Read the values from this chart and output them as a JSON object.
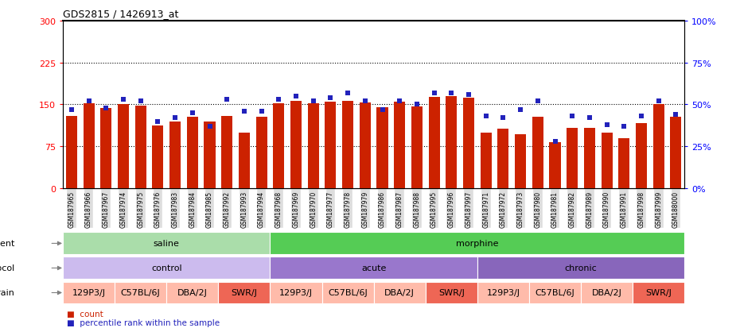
{
  "title": "GDS2815 / 1426913_at",
  "gsm_labels": [
    "GSM187965",
    "GSM187966",
    "GSM187967",
    "GSM187974",
    "GSM187975",
    "GSM187976",
    "GSM187983",
    "GSM187984",
    "GSM187985",
    "GSM187992",
    "GSM187993",
    "GSM187994",
    "GSM187968",
    "GSM187969",
    "GSM187970",
    "GSM187977",
    "GSM187978",
    "GSM187979",
    "GSM187986",
    "GSM187987",
    "GSM187988",
    "GSM187995",
    "GSM187996",
    "GSM187997",
    "GSM187971",
    "GSM187972",
    "GSM187973",
    "GSM187980",
    "GSM187981",
    "GSM187982",
    "GSM187989",
    "GSM187990",
    "GSM187991",
    "GSM187998",
    "GSM187999",
    "GSM188000"
  ],
  "bar_values": [
    130,
    152,
    143,
    150,
    148,
    112,
    120,
    128,
    120,
    130,
    100,
    128,
    152,
    157,
    152,
    155,
    157,
    153,
    145,
    155,
    147,
    163,
    165,
    162,
    100,
    107,
    97,
    128,
    83,
    108,
    108,
    100,
    90,
    117,
    150,
    128
  ],
  "dot_values": [
    47,
    52,
    48,
    53,
    52,
    40,
    42,
    45,
    37,
    53,
    46,
    46,
    53,
    55,
    52,
    54,
    57,
    52,
    47,
    52,
    50,
    57,
    57,
    56,
    43,
    42,
    47,
    52,
    28,
    43,
    42,
    38,
    37,
    43,
    52,
    44
  ],
  "bar_color": "#cc2200",
  "dot_color": "#2222bb",
  "ylim_left": [
    0,
    300
  ],
  "ylim_right": [
    0,
    100
  ],
  "yticks_left": [
    0,
    75,
    150,
    225,
    300
  ],
  "yticks_right": [
    0,
    25,
    50,
    75,
    100
  ],
  "hlines": [
    75,
    150,
    225
  ],
  "agent_groups": [
    {
      "label": "saline",
      "start": 0,
      "end": 12,
      "color": "#aaddaa"
    },
    {
      "label": "morphine",
      "start": 12,
      "end": 36,
      "color": "#55cc55"
    }
  ],
  "protocol_groups": [
    {
      "label": "control",
      "start": 0,
      "end": 12,
      "color": "#ccbbee"
    },
    {
      "label": "acute",
      "start": 12,
      "end": 24,
      "color": "#9977cc"
    },
    {
      "label": "chronic",
      "start": 24,
      "end": 36,
      "color": "#8866bb"
    }
  ],
  "strain_groups": [
    {
      "label": "129P3/J",
      "start": 0,
      "end": 3,
      "color": "#ffbbaa"
    },
    {
      "label": "C57BL/6J",
      "start": 3,
      "end": 6,
      "color": "#ffbbaa"
    },
    {
      "label": "DBA/2J",
      "start": 6,
      "end": 9,
      "color": "#ffbbaa"
    },
    {
      "label": "SWR/J",
      "start": 9,
      "end": 12,
      "color": "#ee6655"
    },
    {
      "label": "129P3/J",
      "start": 12,
      "end": 15,
      "color": "#ffbbaa"
    },
    {
      "label": "C57BL/6J",
      "start": 15,
      "end": 18,
      "color": "#ffbbaa"
    },
    {
      "label": "DBA/2J",
      "start": 18,
      "end": 21,
      "color": "#ffbbaa"
    },
    {
      "label": "SWR/J",
      "start": 21,
      "end": 24,
      "color": "#ee6655"
    },
    {
      "label": "129P3/J",
      "start": 24,
      "end": 27,
      "color": "#ffbbaa"
    },
    {
      "label": "C57BL/6J",
      "start": 27,
      "end": 30,
      "color": "#ffbbaa"
    },
    {
      "label": "DBA/2J",
      "start": 30,
      "end": 33,
      "color": "#ffbbaa"
    },
    {
      "label": "SWR/J",
      "start": 33,
      "end": 36,
      "color": "#ee6655"
    }
  ],
  "background_color": "#ffffff",
  "plot_bg_color": "#ffffff",
  "tick_label_bg": "#dddddd"
}
